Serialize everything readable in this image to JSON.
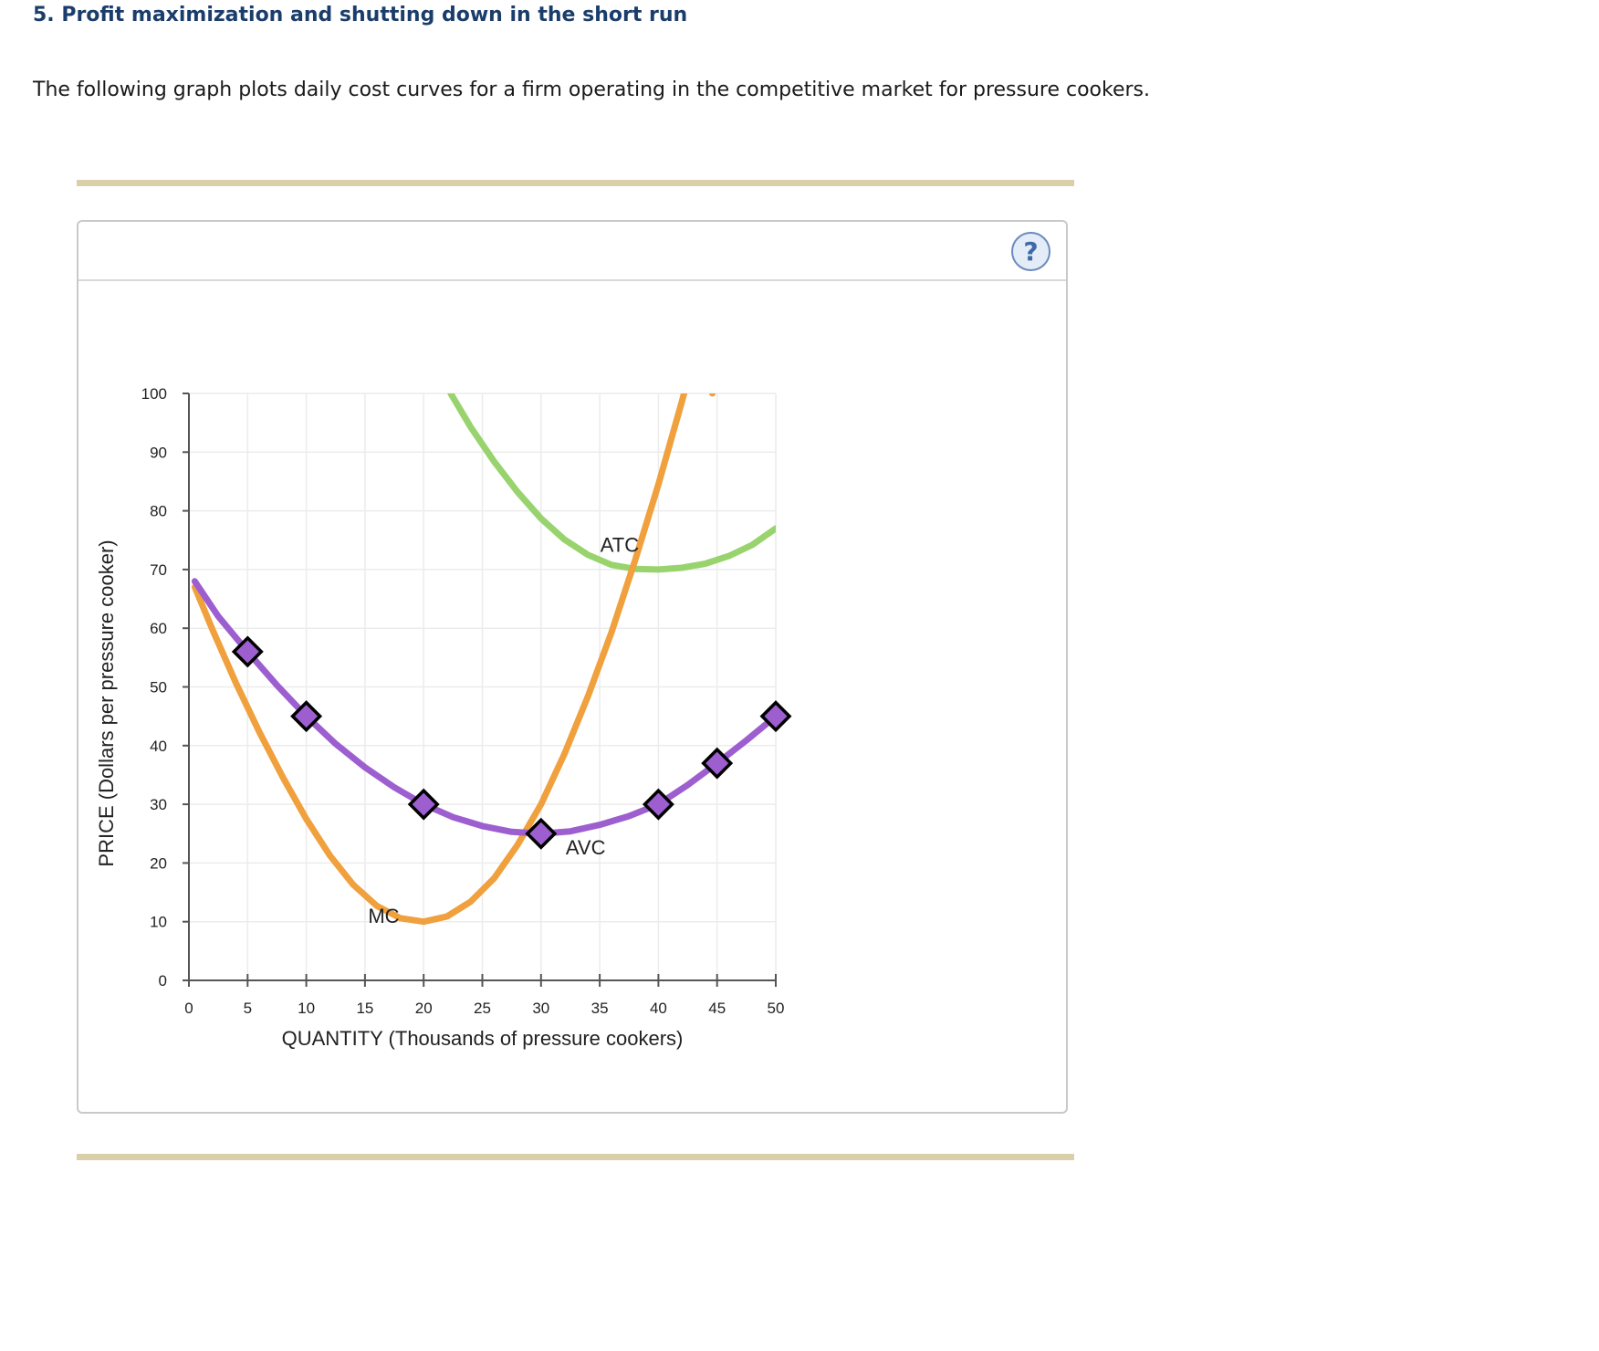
{
  "question": {
    "heading": "5. Profit maximization and shutting down in the short run",
    "intro": "The following graph plots daily cost curves for a firm operating in the competitive market for pressure cookers."
  },
  "help": {
    "icon": "help-icon",
    "symbol": "?"
  },
  "chart_data": {
    "type": "line",
    "xlabel": "QUANTITY (Thousands of pressure cookers)",
    "ylabel": "PRICE (Dollars per pressure cooker)",
    "xlim": [
      0,
      50
    ],
    "ylim": [
      0,
      100
    ],
    "xticks": [
      0,
      5,
      10,
      15,
      20,
      25,
      30,
      35,
      40,
      45,
      50
    ],
    "yticks": [
      0,
      10,
      20,
      30,
      40,
      50,
      60,
      70,
      80,
      90,
      100
    ],
    "grid": true,
    "series": [
      {
        "name": "ATC",
        "color": "#98d36e",
        "markers": false,
        "x": [
          22.3,
          24,
          26,
          28,
          30,
          32,
          34,
          36,
          38,
          40,
          42,
          44,
          46,
          48,
          50
        ],
        "y": [
          100,
          94.3,
          88.4,
          83.2,
          78.7,
          75.1,
          72.5,
          70.8,
          70.1,
          70,
          70.3,
          71,
          72.3,
          74.2,
          77
        ]
      },
      {
        "name": "MC",
        "color": "#f0a03c",
        "markers": false,
        "x": [
          0.5,
          2,
          4,
          6,
          8,
          10,
          12,
          14,
          16,
          18,
          20,
          22,
          24,
          26,
          28,
          30,
          32,
          34,
          36,
          38,
          40,
          42,
          44,
          44.6
        ],
        "y": [
          67,
          59.8,
          50.7,
          42.3,
          34.6,
          27.5,
          21.3,
          16.3,
          12.7,
          10.6,
          10,
          10.9,
          13.4,
          17.4,
          23.1,
          30,
          38.6,
          48.4,
          59.3,
          71.5,
          84.5,
          98.6,
          113.5,
          100
        ]
      },
      {
        "name": "AVC",
        "color": "#9d5fcf",
        "markers": true,
        "marker_x": [
          5,
          10,
          20,
          30,
          40,
          45,
          50
        ],
        "marker_y": [
          56,
          45,
          30,
          25,
          30,
          37,
          45
        ],
        "x": [
          0.5,
          2.5,
          5,
          7.5,
          10,
          12.5,
          15,
          17.5,
          20,
          22.5,
          25,
          27.5,
          30,
          32.5,
          35,
          37.5,
          40,
          42.5,
          45,
          47.5,
          50
        ],
        "y": [
          68,
          62,
          56,
          50.3,
          45,
          40.3,
          36.3,
          32.9,
          30,
          27.8,
          26.3,
          25.3,
          25,
          25.4,
          26.5,
          28,
          30,
          33.3,
          37,
          40.9,
          45
        ]
      }
    ],
    "curve_labels": [
      {
        "text": "ATC",
        "x": 36.7,
        "y": 73
      },
      {
        "text": "MC",
        "x": 16.6,
        "y": 9.8
      },
      {
        "text": "AVC",
        "x": 33.8,
        "y": 21.5
      }
    ]
  }
}
